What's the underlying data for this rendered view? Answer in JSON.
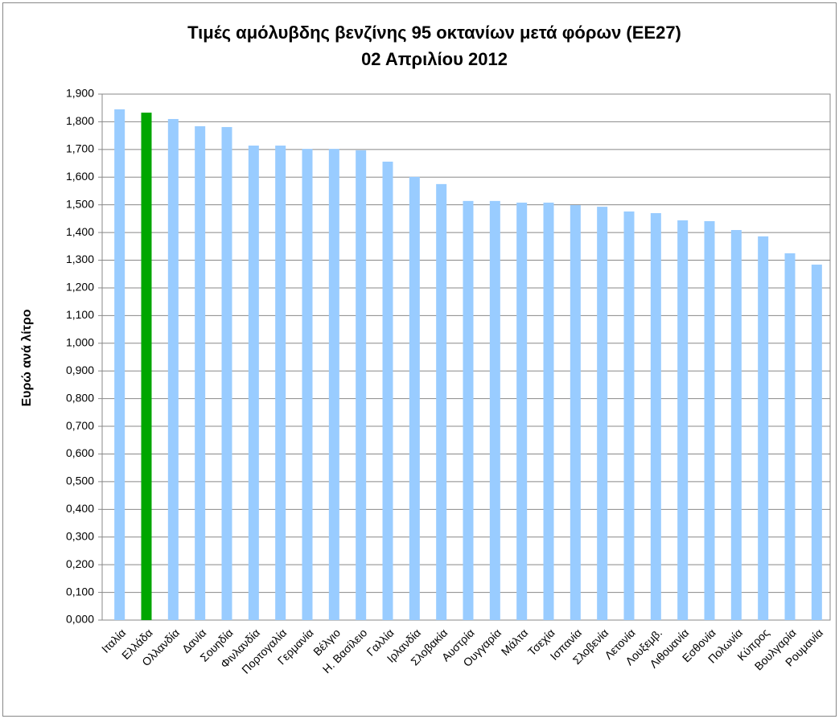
{
  "chart_data": {
    "type": "bar",
    "title": "Τιμές αμόλυβδης βενζίνης 95 οκτανίων μετά φόρων (ΕΕ27)",
    "subtitle": "02 Απριλίου 2012",
    "y_label": "Ευρώ ανά λίτρο",
    "categories": [
      "Ιταλία",
      "Ελλάδα",
      "Ολλανδία",
      "Δανία",
      "Σουηδία",
      "Φινλανδία",
      "Πορτογαλία",
      "Γερμανία",
      "Βέλγιο",
      "Η. Βασίλειο",
      "Γαλλία",
      "Ιρλανδία",
      "Σλοβακία",
      "Αυστρία",
      "Ουγγαρία",
      "Μάλτα",
      "Τσεχία",
      "Ισπανία",
      "Σλοβενία",
      "Λετονία",
      "Λουξεμβ.",
      "Λιθουανία",
      "Εσθονία",
      "Πολωνία",
      "Κύπρος",
      "Βουλγαρία",
      "Ρουμανία"
    ],
    "values": [
      1.845,
      1.833,
      1.81,
      1.784,
      1.781,
      1.714,
      1.714,
      1.702,
      1.702,
      1.697,
      1.656,
      1.601,
      1.575,
      1.514,
      1.514,
      1.508,
      1.508,
      1.499,
      1.493,
      1.476,
      1.47,
      1.444,
      1.441,
      1.409,
      1.386,
      1.325,
      1.284
    ],
    "colors": [
      "#99ccff",
      "#00a600",
      "#99ccff",
      "#99ccff",
      "#99ccff",
      "#99ccff",
      "#99ccff",
      "#99ccff",
      "#99ccff",
      "#99ccff",
      "#99ccff",
      "#99ccff",
      "#99ccff",
      "#99ccff",
      "#99ccff",
      "#99ccff",
      "#99ccff",
      "#99ccff",
      "#99ccff",
      "#99ccff",
      "#99ccff",
      "#99ccff",
      "#99ccff",
      "#99ccff",
      "#99ccff",
      "#99ccff",
      "#99ccff"
    ],
    "ylim": [
      0,
      1.9
    ],
    "yticks": [
      {
        "value": 0,
        "label": "0,000"
      },
      {
        "value": 0.1,
        "label": "0,100"
      },
      {
        "value": 0.2,
        "label": "0,200"
      },
      {
        "value": 0.3,
        "label": "0,300"
      },
      {
        "value": 0.4,
        "label": "0,400"
      },
      {
        "value": 0.5,
        "label": "0,500"
      },
      {
        "value": 0.6,
        "label": "0,600"
      },
      {
        "value": 0.7,
        "label": "0,700"
      },
      {
        "value": 0.8,
        "label": "0,800"
      },
      {
        "value": 0.9,
        "label": "0,900"
      },
      {
        "value": 1.0,
        "label": "1,000"
      },
      {
        "value": 1.1,
        "label": "1,100"
      },
      {
        "value": 1.2,
        "label": "1,200"
      },
      {
        "value": 1.3,
        "label": "1,300"
      },
      {
        "value": 1.4,
        "label": "1,400"
      },
      {
        "value": 1.5,
        "label": "1,500"
      },
      {
        "value": 1.6,
        "label": "1,600"
      },
      {
        "value": 1.7,
        "label": "1,700"
      },
      {
        "value": 1.8,
        "label": "1,800"
      },
      {
        "value": 1.9,
        "label": "1,900"
      }
    ],
    "grid": true
  }
}
